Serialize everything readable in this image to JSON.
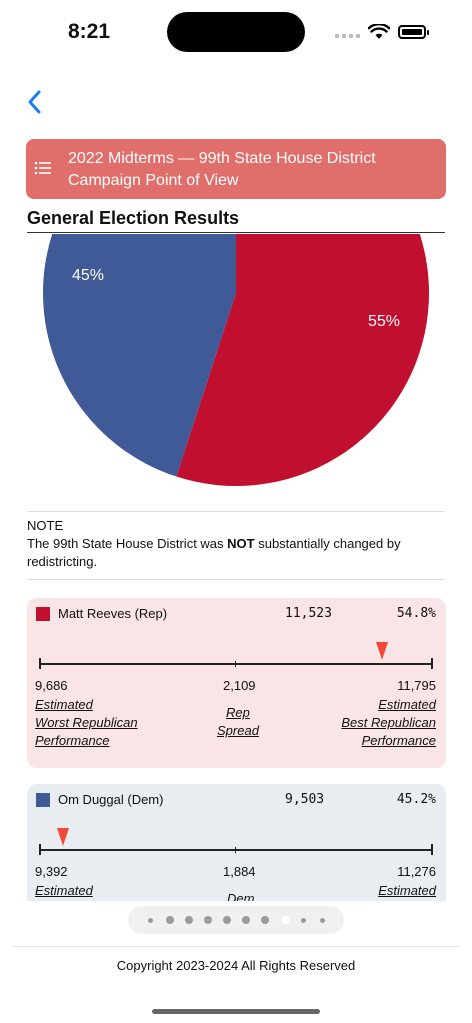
{
  "status": {
    "time": "8:21"
  },
  "banner": {
    "line1": "2022 Midterms — 99th State House District",
    "line2": "Campaign Point of View",
    "color": "#e06e6b"
  },
  "section": {
    "title": "General Election Results"
  },
  "chart_data": {
    "type": "pie",
    "slices": [
      {
        "label": "45%",
        "value": 45,
        "color": "#3f5a96"
      },
      {
        "label": "55%",
        "value": 55,
        "color": "#c00f2f"
      }
    ]
  },
  "note": {
    "heading": "NOTE",
    "text_before": "The 99th State House District was ",
    "emphasis": "NOT",
    "text_after": " substantially changed by redistricting."
  },
  "cards": [
    {
      "name": "Matt Reeves (Rep)",
      "votes": "11,523",
      "pct": "54.8%",
      "color": "#c00f2f",
      "min_value": "9,686",
      "spread_value": "2,109",
      "max_value": "11,795",
      "marker_fraction": 0.87,
      "left_label_1": "Estimated",
      "left_label_2": "Worst Republican",
      "left_label_3": "Performance",
      "mid_label_1": "Rep",
      "mid_label_2": "Spread",
      "right_label_1": "Estimated",
      "right_label_2": "Best Republican",
      "right_label_3": "Performance"
    },
    {
      "name": "Om Duggal (Dem)",
      "votes": "9,503",
      "pct": "45.2%",
      "color": "#3f5a96",
      "min_value": "9,392",
      "spread_value": "1,884",
      "max_value": "11,276",
      "marker_fraction": 0.06,
      "left_label_1": "Estimated",
      "mid_label_1": "Dem",
      "right_label_1": "Estimated"
    }
  ],
  "pager": {
    "count": 10,
    "active_index": 7
  },
  "footer": {
    "copyright": "Copyright 2023-2024 All Rights Reserved"
  }
}
